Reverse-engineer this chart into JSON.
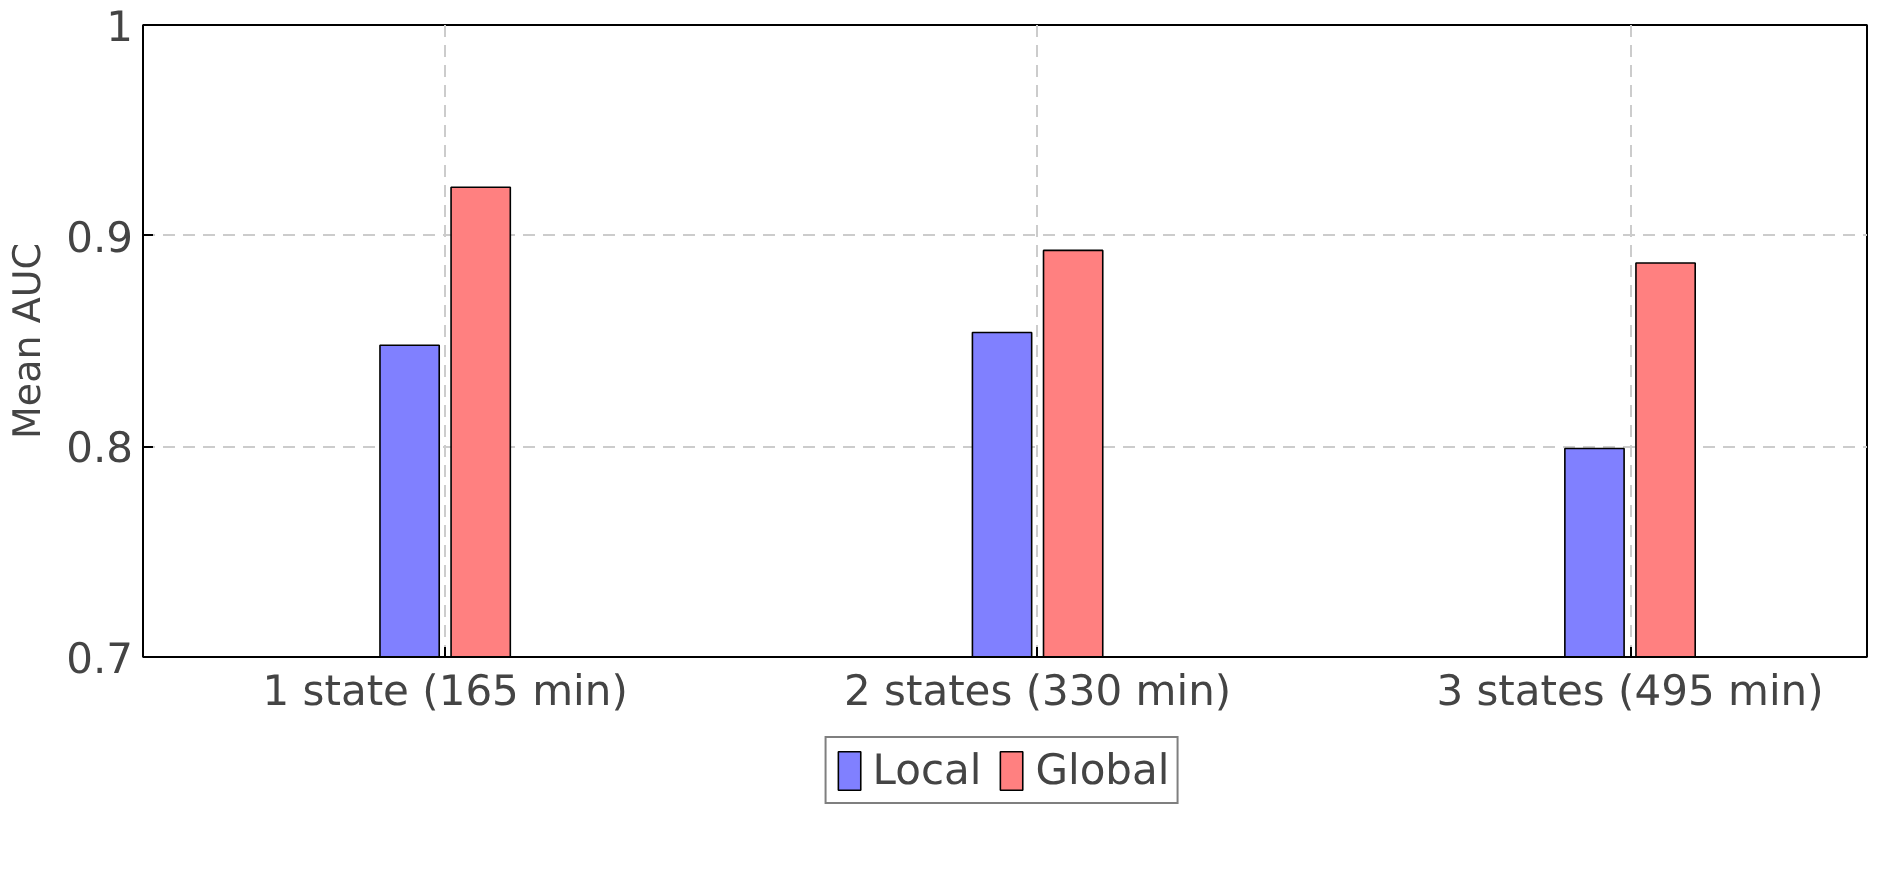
{
  "chart_data": {
    "type": "bar",
    "ylabel": "Mean AUC",
    "categories": [
      "1 state (165 min)",
      "2 states (330 min)",
      "3 states (495 min)"
    ],
    "series": [
      {
        "name": "Local",
        "color": "#8080ff",
        "values": [
          0.848,
          0.854,
          0.799
        ]
      },
      {
        "name": "Global",
        "color": "#ff8080",
        "values": [
          0.923,
          0.893,
          0.887
        ]
      }
    ],
    "ylim": [
      0.7,
      1
    ],
    "yticks": [
      0.7,
      0.8,
      0.9,
      1
    ],
    "grid": true,
    "legend": "bottom"
  }
}
